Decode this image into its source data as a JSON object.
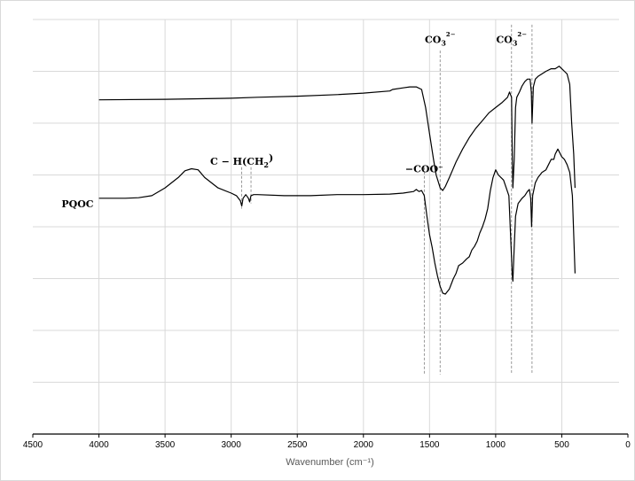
{
  "chart_data": {
    "type": "line",
    "title": "",
    "xlabel": "Wavenumber (cm⁻¹)",
    "ylabel": "",
    "xlim": [
      0,
      4500
    ],
    "x_reversed": true,
    "xticks": [
      4500,
      4000,
      3500,
      3000,
      2500,
      2000,
      1500,
      1000,
      500,
      0
    ],
    "ylim": [
      0,
      8
    ],
    "grid": {
      "x": true,
      "y": true,
      "y_lines": [
        1,
        2,
        3,
        4,
        5,
        6,
        7,
        8
      ]
    },
    "legend": "none",
    "series": [
      {
        "name": "",
        "x": [
          4000,
          3500,
          3000,
          2800,
          2500,
          2200,
          2000,
          1800,
          1780,
          1700,
          1650,
          1600,
          1560,
          1530,
          1500,
          1470,
          1450,
          1420,
          1400,
          1380,
          1350,
          1300,
          1250,
          1200,
          1150,
          1100,
          1050,
          1000,
          950,
          930,
          910,
          895,
          880,
          875,
          870,
          860,
          850,
          840,
          820,
          800,
          780,
          760,
          740,
          730,
          725,
          715,
          700,
          680,
          650,
          620,
          580,
          550,
          520,
          500,
          480,
          460,
          440,
          425,
          410,
          400
        ],
        "y": [
          6.45,
          6.46,
          6.48,
          6.5,
          6.52,
          6.55,
          6.58,
          6.62,
          6.65,
          6.68,
          6.7,
          6.7,
          6.65,
          6.3,
          5.8,
          5.3,
          5.0,
          4.75,
          4.7,
          4.78,
          4.95,
          5.25,
          5.5,
          5.72,
          5.9,
          6.05,
          6.2,
          6.3,
          6.4,
          6.45,
          6.5,
          6.6,
          6.5,
          5.5,
          4.75,
          5.3,
          6.3,
          6.5,
          6.6,
          6.72,
          6.8,
          6.85,
          6.85,
          6.6,
          6.0,
          6.7,
          6.85,
          6.9,
          6.95,
          7.0,
          7.05,
          7.05,
          7.1,
          7.05,
          7.0,
          6.95,
          6.75,
          6.0,
          5.4,
          4.75
        ]
      },
      {
        "name": "PQOC",
        "x": [
          4000,
          3800,
          3700,
          3600,
          3500,
          3400,
          3350,
          3300,
          3250,
          3200,
          3100,
          3000,
          2960,
          2930,
          2920,
          2910,
          2890,
          2870,
          2860,
          2850,
          2830,
          2800,
          2600,
          2400,
          2200,
          2000,
          1800,
          1700,
          1620,
          1600,
          1580,
          1560,
          1540,
          1520,
          1500,
          1480,
          1460,
          1440,
          1420,
          1400,
          1380,
          1350,
          1320,
          1300,
          1280,
          1250,
          1220,
          1200,
          1180,
          1160,
          1140,
          1120,
          1100,
          1080,
          1060,
          1040,
          1020,
          1000,
          980,
          960,
          940,
          920,
          900,
          890,
          880,
          875,
          870,
          860,
          850,
          830,
          800,
          780,
          760,
          745,
          735,
          728,
          720,
          700,
          680,
          650,
          620,
          600,
          580,
          560,
          550,
          540,
          530,
          520,
          500,
          480,
          460,
          440,
          420,
          400
        ],
        "y": [
          4.55,
          4.55,
          4.56,
          4.6,
          4.75,
          4.95,
          5.08,
          5.12,
          5.1,
          4.95,
          4.75,
          4.65,
          4.6,
          4.5,
          4.4,
          4.55,
          4.62,
          4.55,
          4.48,
          4.6,
          4.62,
          4.62,
          4.6,
          4.6,
          4.62,
          4.62,
          4.63,
          4.65,
          4.68,
          4.72,
          4.68,
          4.7,
          4.6,
          4.2,
          3.85,
          3.6,
          3.3,
          3.05,
          2.85,
          2.72,
          2.7,
          2.8,
          3.0,
          3.1,
          3.25,
          3.3,
          3.38,
          3.42,
          3.55,
          3.62,
          3.72,
          3.88,
          4.0,
          4.15,
          4.35,
          4.7,
          4.95,
          5.1,
          5.0,
          4.95,
          4.9,
          4.75,
          4.6,
          4.0,
          3.4,
          3.1,
          2.95,
          3.6,
          4.2,
          4.45,
          4.55,
          4.6,
          4.68,
          4.72,
          4.55,
          4.0,
          4.6,
          4.85,
          4.95,
          5.05,
          5.1,
          5.2,
          5.3,
          5.3,
          5.4,
          5.45,
          5.5,
          5.45,
          5.35,
          5.3,
          5.2,
          5.05,
          4.6,
          3.1
        ]
      }
    ],
    "markers": [
      {
        "x": 2920,
        "y_top": 5.15,
        "y_bottom": 4.35
      },
      {
        "x": 2850,
        "y_top": 5.15,
        "y_bottom": 4.45
      },
      {
        "x": 1540,
        "y_top": 5.15,
        "y_bottom": 1.15
      },
      {
        "x": 1420,
        "y_top": 7.4,
        "y_bottom": 1.15
      },
      {
        "x": 880,
        "y_top": 7.9,
        "y_bottom": 1.15
      },
      {
        "x": 725,
        "y_top": 7.9,
        "y_bottom": 1.15
      }
    ],
    "annotations": [
      {
        "text": "C − H(CH",
        "sub": "2",
        "tail": ")",
        "x": 2920,
        "y": 5.2
      },
      {
        "text": "−COO⁻",
        "sub": "",
        "tail": "",
        "x": 1540,
        "y": 5.05
      },
      {
        "text": "CO",
        "sub": "3",
        "tail": "²⁻",
        "x": 1420,
        "y": 7.55
      },
      {
        "text": "CO",
        "sub": "3",
        "tail": "²⁻",
        "x": 880,
        "y": 7.55
      }
    ],
    "series_labels": [
      {
        "text": "PQOC",
        "series": 1
      }
    ]
  }
}
